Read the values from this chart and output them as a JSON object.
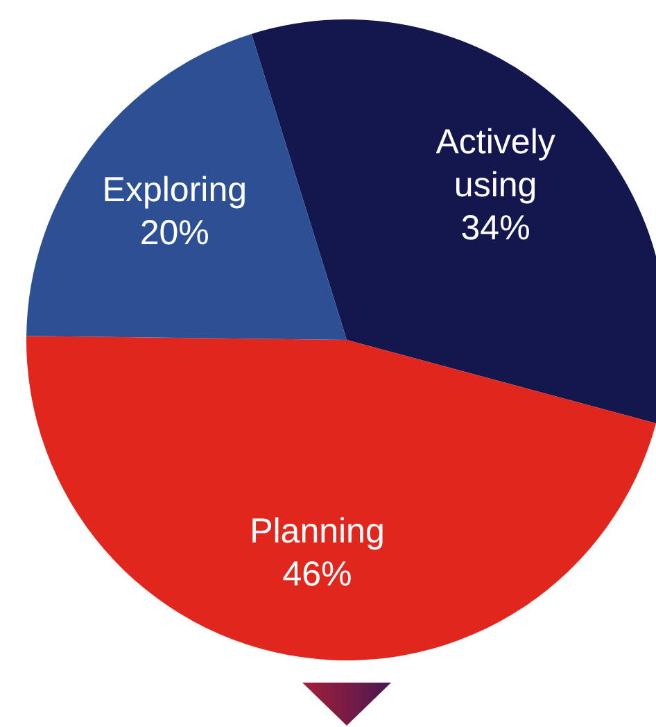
{
  "chart_data": {
    "type": "pie",
    "categories": [
      "Actively using",
      "Planning",
      "Exploring"
    ],
    "values": [
      34,
      46,
      20
    ],
    "colors": [
      "#13174d",
      "#e0261d",
      "#2c5093"
    ],
    "value_labels": [
      "34%",
      "46%",
      "20%"
    ]
  }
}
